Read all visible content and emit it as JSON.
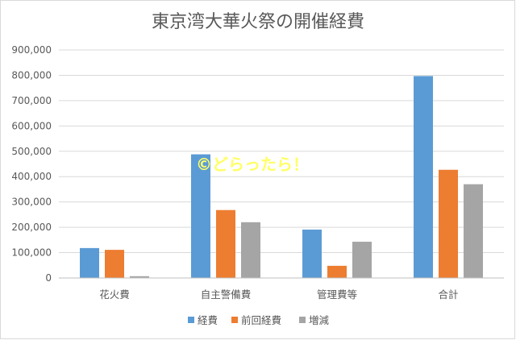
{
  "chart_data": {
    "type": "bar",
    "title": "東京湾大華火祭の開催経費",
    "categories": [
      "花火費",
      "自主警備費",
      "管理費等",
      "合計"
    ],
    "series": [
      {
        "name": "経費",
        "color": "#5b9bd5",
        "values": [
          118000,
          488000,
          191000,
          797000
        ]
      },
      {
        "name": "前回経費",
        "color": "#ed7d31",
        "values": [
          111000,
          268000,
          48000,
          427000
        ]
      },
      {
        "name": "増減",
        "color": "#a5a5a5",
        "values": [
          7000,
          220000,
          143000,
          370000
        ]
      }
    ],
    "ylim": [
      0,
      900000
    ],
    "yticks": [
      0,
      100000,
      200000,
      300000,
      400000,
      500000,
      600000,
      700000,
      800000,
      900000
    ],
    "ytick_labels": [
      "0",
      "100,000",
      "200,000",
      "300,000",
      "400,000",
      "500,000",
      "600,000",
      "700,000",
      "800,000",
      "900,000"
    ],
    "grid": true,
    "legend_position": "bottom",
    "gridline_color": "#d9d9d9"
  },
  "watermark": {
    "text": "©どらったら！"
  }
}
